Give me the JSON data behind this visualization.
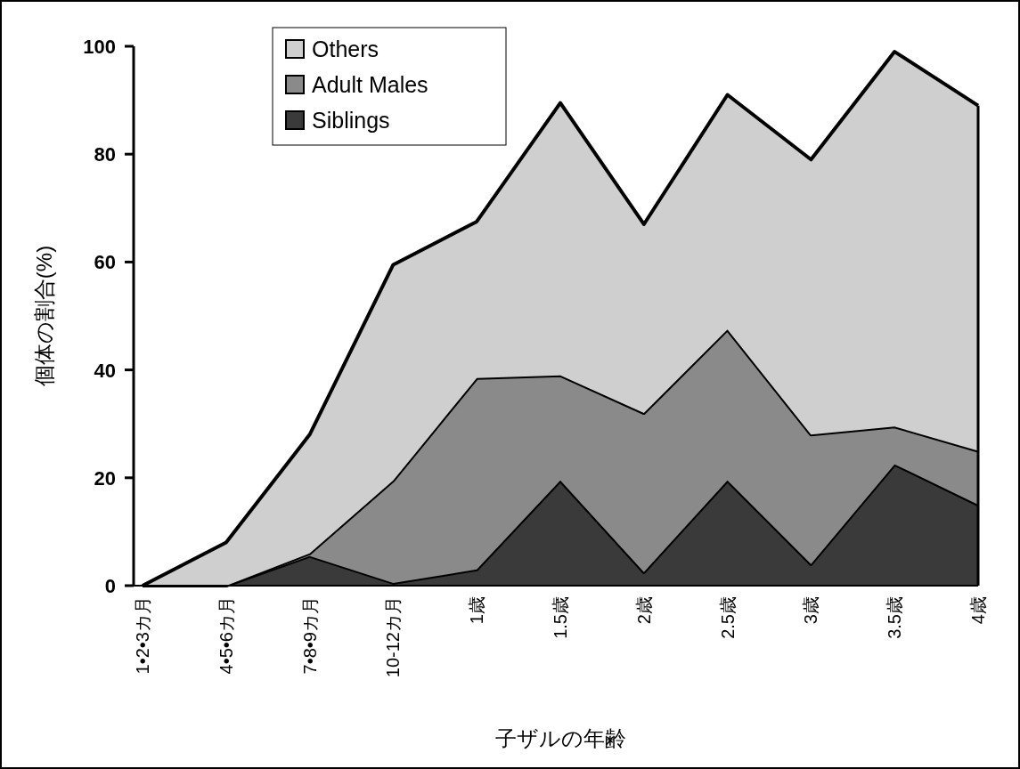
{
  "chart_data": {
    "type": "area",
    "stacked": true,
    "xlabel": "子ザルの年齢",
    "ylabel": "個体の割合(%)",
    "categories": [
      "1•2•3カ月",
      "4•5•6カ月",
      "7•8•9カ月",
      "10-12カ月",
      "1歳",
      "1.5歳",
      "2歳",
      "2.5歳",
      "3歳",
      "3.5歳",
      "4歳"
    ],
    "series": [
      {
        "name": "Siblings",
        "color": "#3a3a3a",
        "values": [
          0,
          0,
          5.5,
          0.5,
          3,
          19.5,
          2.5,
          19.5,
          4,
          22.5,
          15
        ]
      },
      {
        "name": "Adult Males",
        "color": "#8a8a8a",
        "values": [
          0,
          0,
          0.5,
          19,
          35.5,
          19.5,
          29.5,
          28,
          24,
          7,
          10
        ]
      },
      {
        "name": "Others",
        "color": "#cfcfcf",
        "values": [
          0,
          8,
          22,
          40,
          29,
          50.5,
          35,
          43.5,
          51,
          69.5,
          64
        ]
      }
    ],
    "ylim": [
      0,
      100
    ],
    "yticks": [
      0,
      20,
      40,
      60,
      80,
      100
    ],
    "grid": false,
    "legend": "top left"
  }
}
